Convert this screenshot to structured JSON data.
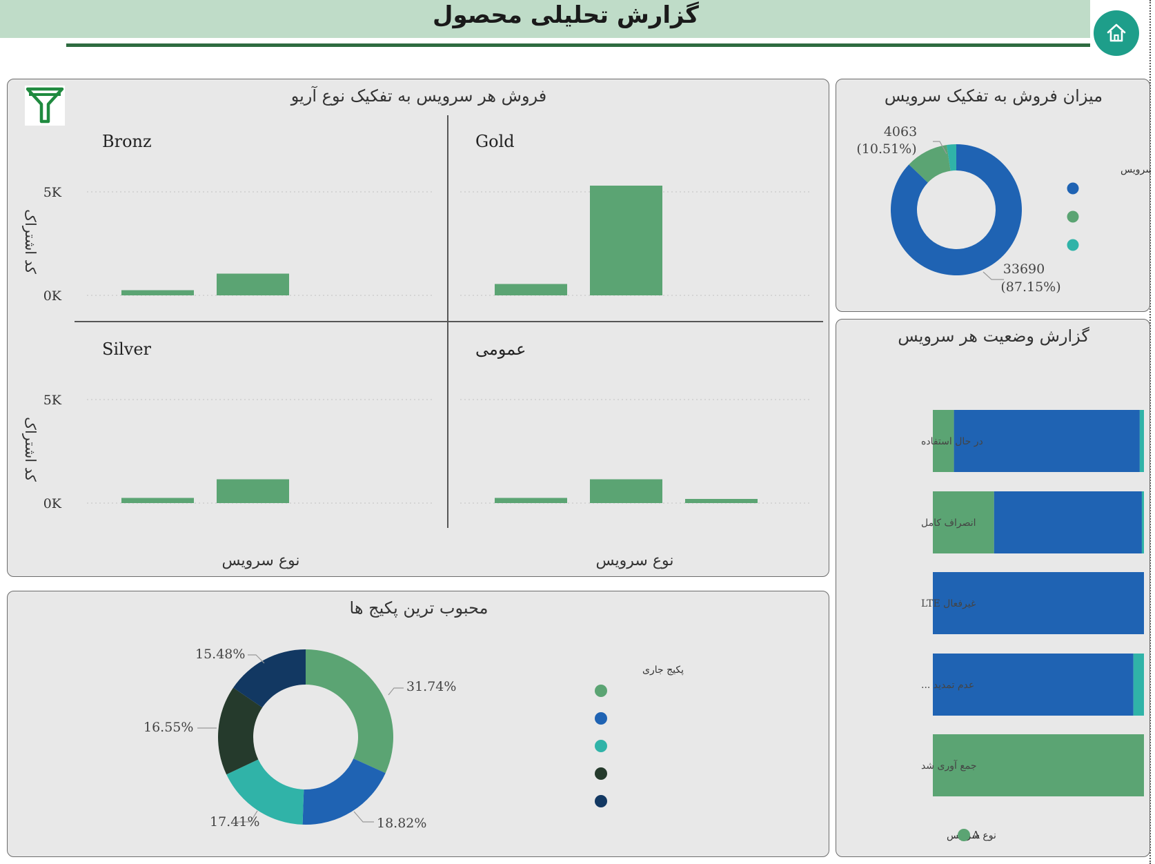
{
  "header": {
    "title": "گزارش تحلیلی محصول"
  },
  "icons": {
    "home": "home-icon",
    "filter": "filter-icon"
  },
  "colors": {
    "green": "#5ba473",
    "blue": "#1f63b3",
    "teal": "#30b3a8",
    "dark_green": "#253a2c",
    "navy": "#123862",
    "header_bg": "#bfdcc8",
    "header_line": "#2e6b40",
    "home": "#1e9e8a"
  },
  "area_panel": {
    "title": "فروش هر سرویس به تفکیک نوع آریو",
    "y_axis_label": "کد اشتراک",
    "x_axis_label": "نوع سرویس",
    "chart_data": {
      "type": "bar",
      "ylim": [
        0,
        5000
      ],
      "yticks": [
        "0K",
        "5K"
      ],
      "grid": true,
      "facets": [
        {
          "name": "Bronz",
          "values": [
            250,
            1050
          ]
        },
        {
          "name": "Gold",
          "values": [
            550,
            5300
          ]
        },
        {
          "name": "Silver",
          "values": [
            250,
            1150
          ]
        },
        {
          "name": "عمومی",
          "values": [
            250,
            1150,
            200
          ]
        }
      ]
    }
  },
  "sales_panel": {
    "title": "میزان فروش به تفکیک سرویس",
    "legend_title": "نوع سرویس",
    "chart_data": {
      "type": "pie",
      "slices": [
        {
          "value": 33690,
          "percent": 87.15,
          "label": "33690",
          "percent_label": "(87.15%)",
          "color": "#1f63b3"
        },
        {
          "value": 4063,
          "percent": 10.51,
          "label": "4063",
          "percent_label": "(10.51%)",
          "color": "#5ba473"
        },
        {
          "percent": 2.34,
          "color": "#30b3a8"
        }
      ]
    }
  },
  "status_panel": {
    "title": "گزارش وضعیت هر سرویس",
    "legend_title": "نوع سرویس",
    "legend_items": [
      "A"
    ],
    "chart_data": {
      "type": "bar",
      "stacked": true,
      "percent": true,
      "categories": [
        "در حال استفاده",
        "انصراف کامل",
        "غیرفعال LTE",
        "عدم تمدید ...",
        "جمع آوری شد"
      ],
      "series": [
        {
          "values": [
            10,
            29,
            0,
            0,
            100
          ],
          "color": "#5ba473"
        },
        {
          "values": [
            88,
            70,
            100,
            95,
            0
          ],
          "color": "#1f63b3"
        },
        {
          "values": [
            2,
            1,
            0,
            5,
            0
          ],
          "color": "#30b3a8"
        }
      ]
    }
  },
  "packages_panel": {
    "title": "محبوب ترین پکیج ها",
    "legend_title": "پکیج جاری",
    "chart_data": {
      "type": "pie",
      "slices": [
        {
          "percent": 31.74,
          "label": "31.74%",
          "color": "#5ba473"
        },
        {
          "percent": 18.82,
          "label": "18.82%",
          "color": "#1f63b3"
        },
        {
          "percent": 17.41,
          "label": "17.41%",
          "color": "#30b3a8"
        },
        {
          "percent": 16.55,
          "label": "16.55%",
          "color": "#253a2c"
        },
        {
          "percent": 15.48,
          "label": "15.48%",
          "color": "#123862"
        }
      ]
    }
  }
}
